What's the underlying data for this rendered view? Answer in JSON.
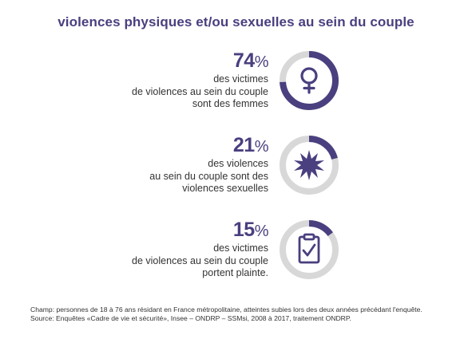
{
  "title": "violences physiques et/ou sexuelles au sein du couple",
  "colors": {
    "accent": "#4a3f7f",
    "track": "#d8d8d8"
  },
  "chart_data": {
    "type": "pie",
    "title": "violences physiques et/ou sexuelles au sein du couple",
    "items": [
      {
        "value": 74,
        "value_label": "74",
        "unit": "%",
        "description": "des victimes\nde violences au sein du couple\nsont des femmes",
        "icon": "female-symbol-icon"
      },
      {
        "value": 21,
        "value_label": "21",
        "unit": "%",
        "description": "des violences\nau sein du couple sont des\nviolences sexuelles",
        "icon": "burst-icon"
      },
      {
        "value": 15,
        "value_label": "15",
        "unit": "%",
        "description": "des victimes\nde violences au sein du couple\nportent plainte.",
        "icon": "clipboard-check-icon"
      }
    ]
  },
  "footnote": {
    "champ": "Champ: personnes de 18 à 76 ans résidant en France métropolitaine, atteintes subies lors des deux années précédant l'enquête.",
    "source": "Source: Enquêtes «Cadre de vie et sécurité», Insee – ONDRP – SSMsi, 2008 à 2017, traitement ONDRP."
  }
}
